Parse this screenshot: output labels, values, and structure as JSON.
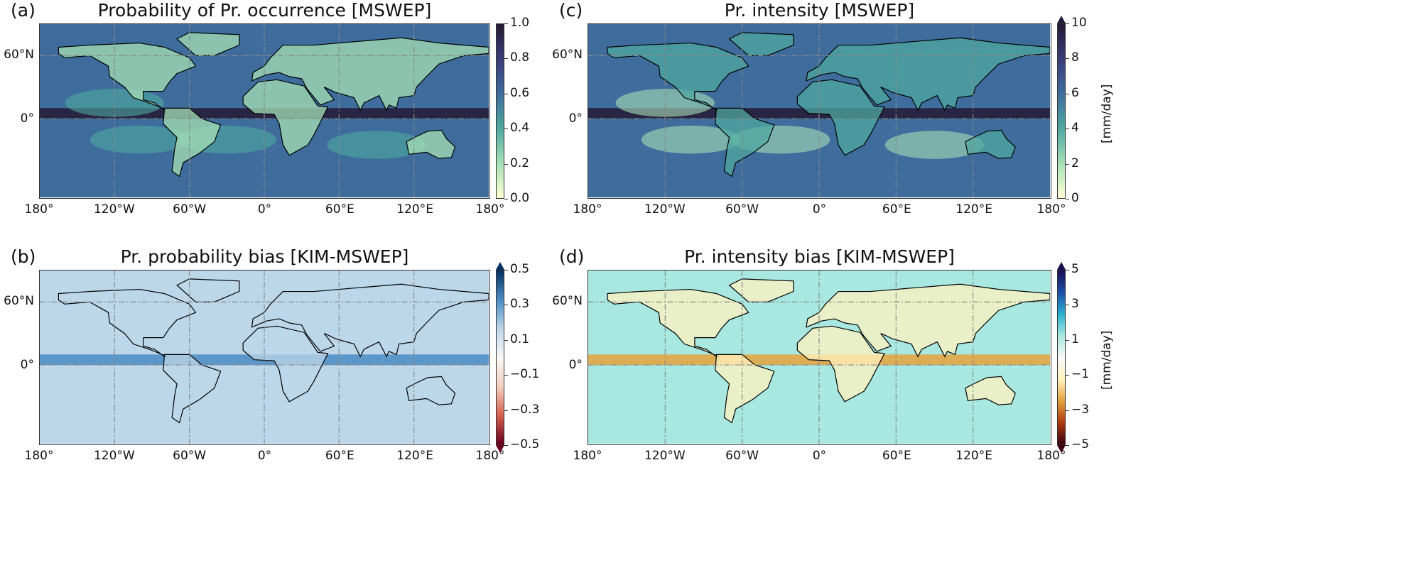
{
  "figure": {
    "x_ticks": [
      "180°",
      "120°W",
      "60°W",
      "0°",
      "60°E",
      "120°E",
      "180°"
    ],
    "y_ticks": [
      "60°N",
      "0°"
    ],
    "panels": [
      {
        "id": "a",
        "letter": "(a)",
        "title": "Probability of Pr. occurrence [MSWEP]",
        "colormap": "sequential-yellow-teal-navy",
        "colors": [
          "#ffffd4",
          "#a6e0b5",
          "#4fa8a0",
          "#3e6c9c",
          "#3a3c78",
          "#241a35"
        ],
        "range": [
          0,
          1
        ],
        "ticks": [
          "0.0",
          "0.2",
          "0.4",
          "0.6",
          "0.8",
          "1.0"
        ],
        "tick_values": [
          0,
          0.2,
          0.4,
          0.6,
          0.8,
          1.0
        ],
        "extend": "neither",
        "unit": ""
      },
      {
        "id": "c",
        "letter": "(c)",
        "title": "Pr. intensity [MSWEP]",
        "colormap": "sequential-yellow-teal-navy",
        "colors": [
          "#ffffd4",
          "#a6e0b5",
          "#4fa8a0",
          "#3e6c9c",
          "#3a3c78",
          "#241a35"
        ],
        "range": [
          0,
          10
        ],
        "ticks": [
          "0",
          "2",
          "4",
          "6",
          "8",
          "10"
        ],
        "tick_values": [
          0,
          2,
          4,
          6,
          8,
          10
        ],
        "extend": "max",
        "unit": "[mm/day]"
      },
      {
        "id": "b",
        "letter": "(b)",
        "title": "Pr. probability bias [KIM-MSWEP]",
        "colormap": "diverging-red-white-blue",
        "colors": [
          "#67001f",
          "#d6604d",
          "#f4d0c0",
          "#f7f7f7",
          "#bcd6ea",
          "#4a8cc2",
          "#053061"
        ],
        "range": [
          -0.5,
          0.5
        ],
        "ticks": [
          "−0.5",
          "−0.3",
          "−0.1",
          "0.1",
          "0.3",
          "0.5"
        ],
        "tick_values": [
          -0.5,
          -0.3,
          -0.1,
          0.1,
          0.3,
          0.5
        ],
        "extend": "both",
        "unit": ""
      },
      {
        "id": "d",
        "letter": "(d)",
        "title": "Pr. intensity bias [KIM-MSWEP]",
        "colormap": "diverging-brown-yellow-cyan-navy",
        "colors": [
          "#3a0010",
          "#b03a10",
          "#e6a23c",
          "#fff3c0",
          "#f8f8f8",
          "#a8e8e0",
          "#2ab0d0",
          "#1c4ea8",
          "#1a0a50"
        ],
        "range": [
          -5,
          5
        ],
        "ticks": [
          "−5",
          "−3",
          "−1",
          "1",
          "3",
          "5"
        ],
        "tick_values": [
          -5,
          -3,
          -1,
          1,
          3,
          5
        ],
        "extend": "both",
        "unit": "[mm/day]"
      }
    ]
  }
}
